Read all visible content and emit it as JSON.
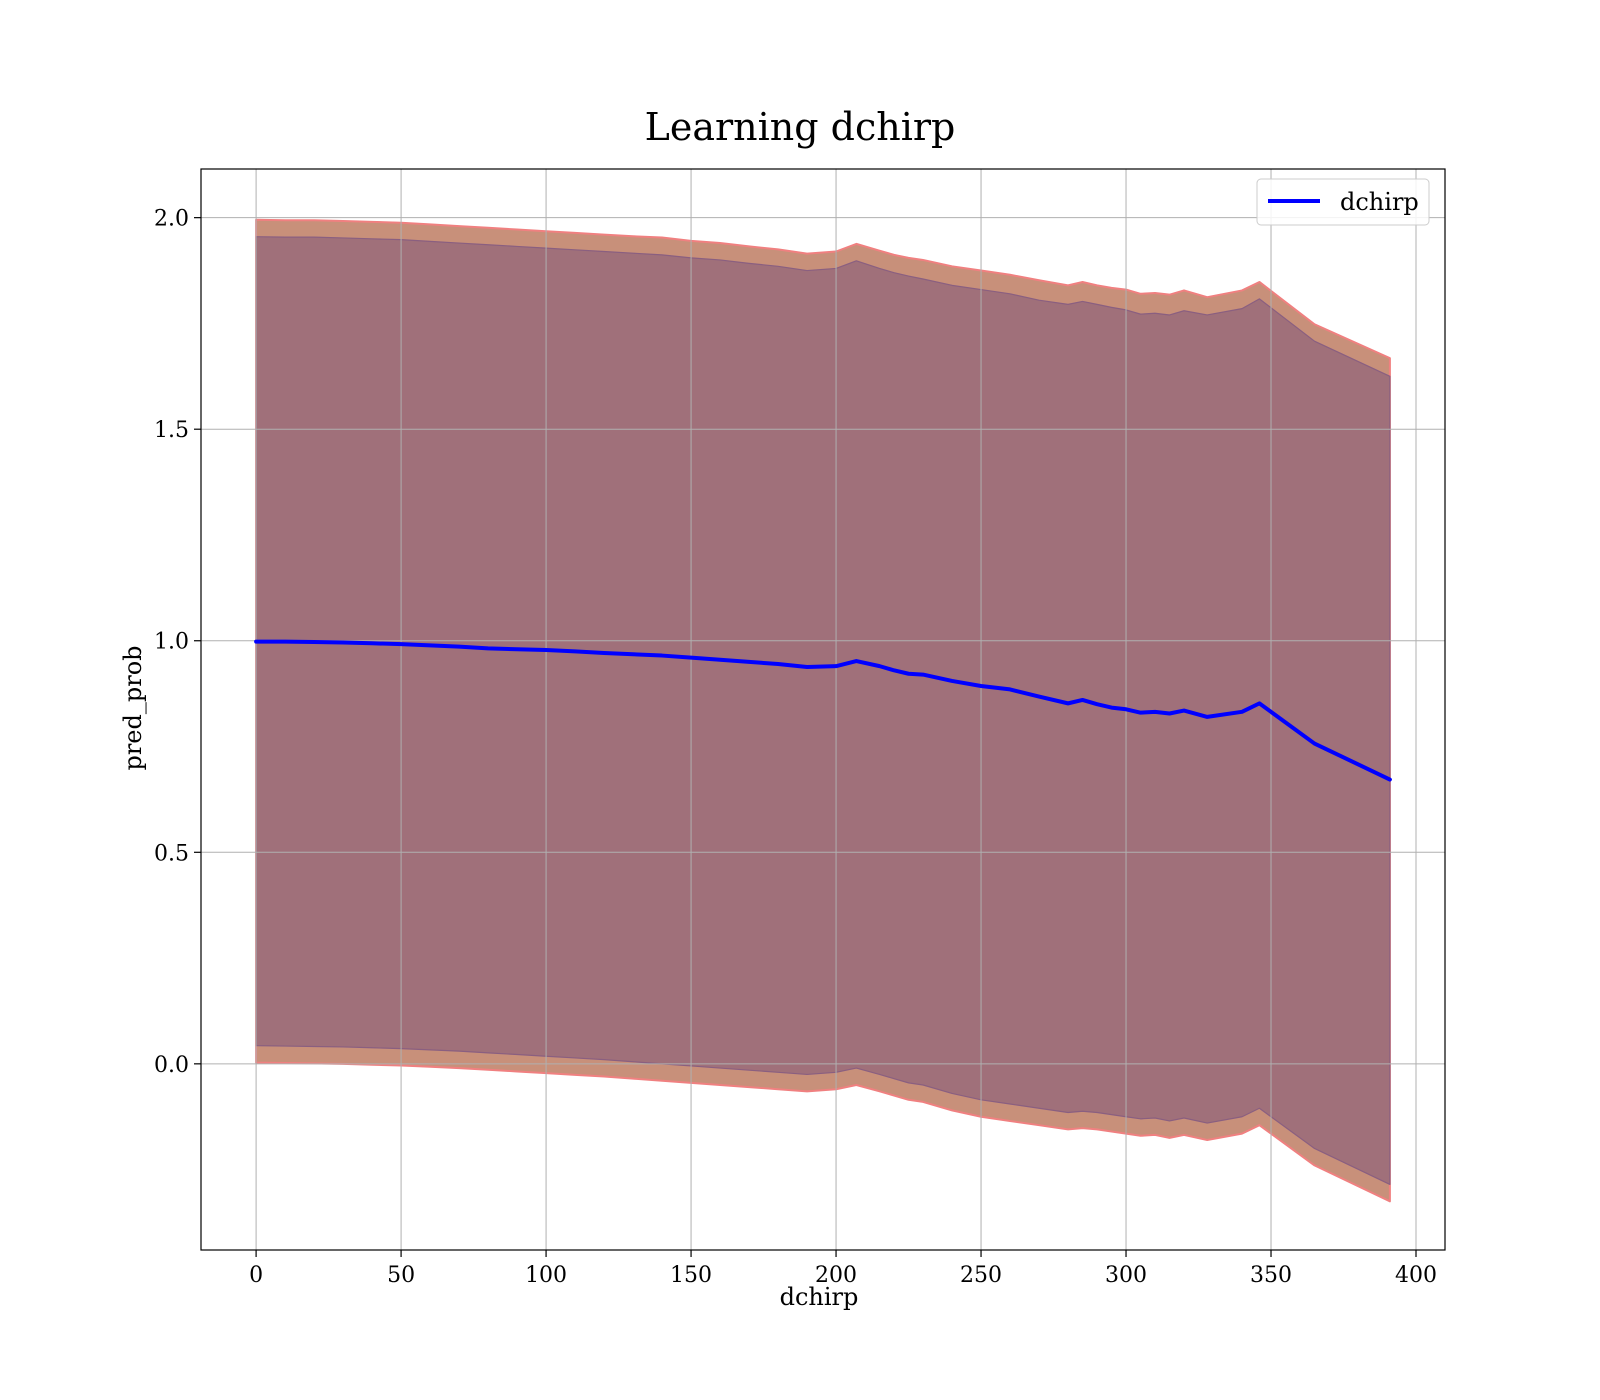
{
  "chart_data": {
    "type": "line",
    "title": "Learning dchirp",
    "xlabel": "dchirp",
    "ylabel": "pred_prob",
    "xlim": [
      -19,
      410
    ],
    "ylim": [
      -0.44,
      2.115
    ],
    "xticks": [
      0,
      50,
      100,
      150,
      200,
      250,
      300,
      350,
      400
    ],
    "yticks": [
      0.0,
      0.5,
      1.0,
      1.5,
      2.0
    ],
    "xtick_labels": [
      "0",
      "50",
      "100",
      "150",
      "200",
      "250",
      "300",
      "350",
      "400"
    ],
    "ytick_labels": [
      "0.0",
      "0.5",
      "1.0",
      "1.5",
      "2.0"
    ],
    "grid": true,
    "legend": {
      "placement": "top-right",
      "entries": [
        "dchirp"
      ]
    },
    "colors": {
      "line": "#0000ff",
      "outer_band": "#c8907a",
      "outer_band_edge": "#f08080",
      "inner_band": "#a0707a",
      "inner_band_edge": "#8a5f80"
    },
    "series": [
      {
        "name": "dchirp",
        "x": [
          0,
          10,
          20,
          30,
          40,
          50,
          60,
          70,
          80,
          90,
          100,
          110,
          120,
          130,
          140,
          150,
          160,
          170,
          180,
          190,
          200,
          207,
          215,
          220,
          225,
          230,
          240,
          250,
          260,
          270,
          280,
          285,
          290,
          295,
          300,
          305,
          310,
          315,
          320,
          328,
          340,
          346,
          365,
          391
        ],
        "y": [
          0.998,
          0.998,
          0.997,
          0.996,
          0.994,
          0.992,
          0.989,
          0.986,
          0.982,
          0.98,
          0.978,
          0.975,
          0.971,
          0.968,
          0.965,
          0.96,
          0.955,
          0.95,
          0.945,
          0.938,
          0.94,
          0.952,
          0.94,
          0.93,
          0.922,
          0.92,
          0.905,
          0.893,
          0.885,
          0.868,
          0.852,
          0.86,
          0.85,
          0.842,
          0.838,
          0.83,
          0.832,
          0.828,
          0.835,
          0.82,
          0.832,
          0.852,
          0.757,
          0.672
        ]
      }
    ],
    "bands": [
      {
        "role": "outer",
        "upper": [
          1.995,
          1.994,
          1.994,
          1.992,
          1.99,
          1.988,
          1.984,
          1.98,
          1.976,
          1.972,
          1.968,
          1.964,
          1.96,
          1.956,
          1.953,
          1.945,
          1.94,
          1.932,
          1.925,
          1.915,
          1.92,
          1.938,
          1.922,
          1.912,
          1.905,
          1.9,
          1.885,
          1.875,
          1.865,
          1.852,
          1.84,
          1.848,
          1.84,
          1.834,
          1.83,
          1.82,
          1.822,
          1.818,
          1.828,
          1.812,
          1.828,
          1.848,
          1.748,
          1.668
        ],
        "lower": [
          0.003,
          0.002,
          0.001,
          0.0,
          -0.002,
          -0.004,
          -0.007,
          -0.01,
          -0.014,
          -0.018,
          -0.022,
          -0.026,
          -0.03,
          -0.035,
          -0.04,
          -0.045,
          -0.05,
          -0.055,
          -0.06,
          -0.065,
          -0.06,
          -0.05,
          -0.065,
          -0.075,
          -0.085,
          -0.09,
          -0.11,
          -0.125,
          -0.135,
          -0.145,
          -0.155,
          -0.152,
          -0.155,
          -0.16,
          -0.165,
          -0.17,
          -0.168,
          -0.175,
          -0.168,
          -0.18,
          -0.165,
          -0.145,
          -0.24,
          -0.325
        ]
      },
      {
        "role": "inner",
        "upper": [
          1.955,
          1.954,
          1.954,
          1.952,
          1.95,
          1.948,
          1.944,
          1.94,
          1.936,
          1.932,
          1.928,
          1.924,
          1.92,
          1.916,
          1.912,
          1.905,
          1.9,
          1.892,
          1.885,
          1.875,
          1.88,
          1.898,
          1.88,
          1.87,
          1.862,
          1.855,
          1.84,
          1.83,
          1.82,
          1.805,
          1.795,
          1.802,
          1.795,
          1.788,
          1.782,
          1.772,
          1.774,
          1.77,
          1.78,
          1.77,
          1.785,
          1.808,
          1.708,
          1.625
        ],
        "lower": [
          0.043,
          0.042,
          0.041,
          0.04,
          0.038,
          0.036,
          0.033,
          0.03,
          0.026,
          0.022,
          0.018,
          0.014,
          0.01,
          0.005,
          0.0,
          -0.005,
          -0.01,
          -0.015,
          -0.02,
          -0.025,
          -0.02,
          -0.01,
          -0.025,
          -0.035,
          -0.045,
          -0.05,
          -0.07,
          -0.085,
          -0.095,
          -0.105,
          -0.115,
          -0.112,
          -0.115,
          -0.12,
          -0.125,
          -0.13,
          -0.128,
          -0.135,
          -0.128,
          -0.14,
          -0.125,
          -0.105,
          -0.2,
          -0.285
        ]
      }
    ]
  }
}
